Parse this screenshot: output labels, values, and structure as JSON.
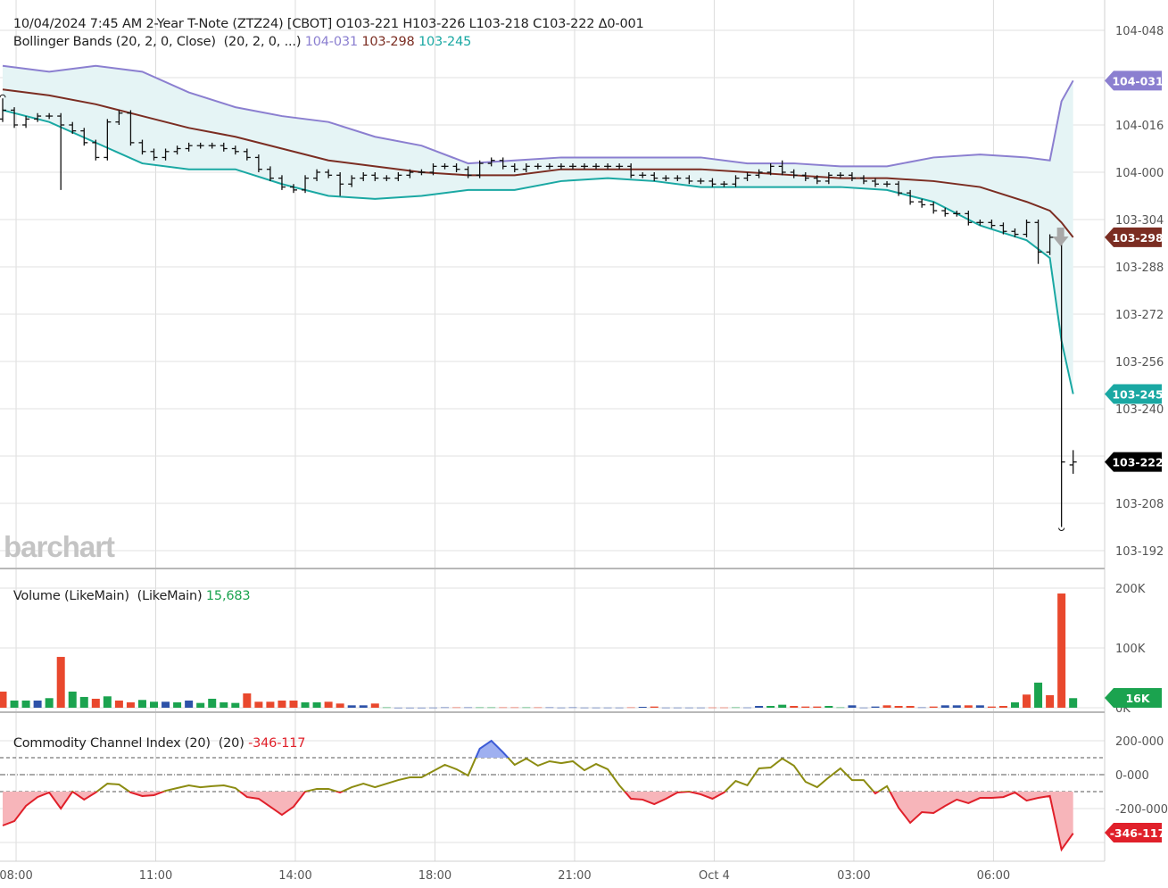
{
  "header": {
    "datetime": "10/04/2024 7:45 AM",
    "instrument": "2-Year T-Note (ZTZ24) [CBOT]",
    "open": "O103-221",
    "high": "H103-226",
    "low": "L103-218",
    "close": "C103-222",
    "change": "Δ0-001"
  },
  "bollinger_legend": {
    "label": "Bollinger Bands (20, 2, 0, Close)  (20, 2, 0, ...)",
    "upper": "104-031",
    "middle": "103-298",
    "lower": "103-245"
  },
  "volume_legend": {
    "label": "Volume (LikeMain)  (LikeMain)",
    "value": "15,683"
  },
  "cci_legend": {
    "label": "Commodity Channel Index (20)  (20)",
    "value": "-346-117"
  },
  "watermark": "barchart",
  "colors": {
    "upper_band": "#8b7fd0",
    "middle_band": "#7b2d22",
    "lower_band": "#1aa8a3",
    "band_fill": "#e5f4f5",
    "volume_up": "#1ba34f",
    "volume_down": "#e9482d",
    "volume_flat": "#2d52a8",
    "cci_line": "#8c8c12",
    "cci_high": "#3c5bd6",
    "cci_low": "#e0202a",
    "last_price": "#000000"
  },
  "chart_data": [
    {
      "type": "ohlc",
      "panel": "price",
      "x_labels": [
        {
          "label": "08:00",
          "bar": 1
        },
        {
          "label": "11:00",
          "bar": 13
        },
        {
          "label": "14:00",
          "bar": 25
        },
        {
          "label": "18:00",
          "bar": 37
        },
        {
          "label": "21:00",
          "bar": 49
        },
        {
          "label": "Oct 4",
          "bar": 61
        },
        {
          "label": "03:00",
          "bar": 73
        },
        {
          "label": "06:00",
          "bar": 85
        }
      ],
      "y_ticks": [
        "104-048",
        "104-016",
        "104-000",
        "103-304",
        "103-288",
        "103-272",
        "103-256",
        "103-240",
        "103-208",
        "103-192"
      ],
      "ylim": [
        "103-186",
        "104-058"
      ],
      "grid": true,
      "bars": [
        [
          "104-018",
          "104-025",
          "104-017",
          "104-021"
        ],
        [
          "104-021",
          "104-022",
          "104-015",
          "104-016"
        ],
        [
          "104-016",
          "104-019",
          "104-015",
          "104-018"
        ],
        [
          "104-018",
          "104-020",
          "104-017",
          "104-019"
        ],
        [
          "104-019",
          "104-020",
          "104-018",
          "104-019"
        ],
        [
          "104-019",
          "104-020",
          "103-314",
          "104-016"
        ],
        [
          "104-016",
          "104-017",
          "104-013",
          "104-014"
        ],
        [
          "104-014",
          "104-015",
          "104-009",
          "104-010"
        ],
        [
          "104-010",
          "104-011",
          "104-004",
          "104-005"
        ],
        [
          "104-005",
          "104-018",
          "104-004",
          "104-017"
        ],
        [
          "104-017",
          "104-021",
          "104-016",
          "104-020"
        ],
        [
          "104-020",
          "104-021",
          "104-009",
          "104-010"
        ],
        [
          "104-010",
          "104-011",
          "104-006",
          "104-007"
        ],
        [
          "104-007",
          "104-008",
          "104-004",
          "104-005"
        ],
        [
          "104-005",
          "104-008",
          "104-004",
          "104-007"
        ],
        [
          "104-007",
          "104-009",
          "104-006",
          "104-008"
        ],
        [
          "104-008",
          "104-010",
          "104-007",
          "104-009"
        ],
        [
          "104-009",
          "104-010",
          "104-008",
          "104-009"
        ],
        [
          "104-009",
          "104-010",
          "104-008",
          "104-009"
        ],
        [
          "104-009",
          "104-010",
          "104-007",
          "104-008"
        ],
        [
          "104-008",
          "104-009",
          "104-006",
          "104-007"
        ],
        [
          "104-007",
          "104-008",
          "104-004",
          "104-005"
        ],
        [
          "104-005",
          "104-006",
          "104-000",
          "104-001"
        ],
        [
          "104-001",
          "104-002",
          "103-317",
          "103-318"
        ],
        [
          "103-318",
          "103-319",
          "103-314",
          "103-315"
        ],
        [
          "103-315",
          "103-316",
          "103-313",
          "103-314"
        ],
        [
          "103-314",
          "103-319",
          "103-313",
          "103-318"
        ],
        [
          "103-318",
          "104-001",
          "103-317",
          "104-000"
        ],
        [
          "104-000",
          "104-001",
          "103-318",
          "103-319"
        ],
        [
          "103-319",
          "104-000",
          "103-312",
          "103-316"
        ],
        [
          "103-316",
          "103-319",
          "103-315",
          "103-318"
        ],
        [
          "103-318",
          "104-000",
          "103-317",
          "103-319"
        ],
        [
          "103-319",
          "104-000",
          "103-317",
          "103-318"
        ],
        [
          "103-318",
          "103-319",
          "103-317",
          "103-318"
        ],
        [
          "103-318",
          "104-000",
          "103-317",
          "103-319"
        ],
        [
          "103-319",
          "104-001",
          "103-318",
          "104-000"
        ],
        [
          "104-000",
          "104-001",
          "103-319",
          "104-000"
        ],
        [
          "104-000",
          "104-003",
          "103-319",
          "104-002"
        ],
        [
          "104-002",
          "104-003",
          "104-001",
          "104-002"
        ],
        [
          "104-002",
          "104-003",
          "104-000",
          "104-001"
        ],
        [
          "104-001",
          "104-002",
          "103-318",
          "103-319"
        ],
        [
          "103-319",
          "104-004",
          "103-318",
          "104-003"
        ],
        [
          "104-003",
          "104-005",
          "104-002",
          "104-004"
        ],
        [
          "104-004",
          "104-005",
          "104-001",
          "104-002"
        ],
        [
          "104-002",
          "104-003",
          "104-000",
          "104-001"
        ],
        [
          "104-001",
          "104-003",
          "104-000",
          "104-002"
        ],
        [
          "104-002",
          "104-003",
          "104-001",
          "104-002"
        ],
        [
          "104-002",
          "104-003",
          "104-001",
          "104-002"
        ],
        [
          "104-002",
          "104-003",
          "104-001",
          "104-002"
        ],
        [
          "104-002",
          "104-003",
          "104-001",
          "104-002"
        ],
        [
          "104-002",
          "104-003",
          "104-001",
          "104-002"
        ],
        [
          "104-002",
          "104-003",
          "104-001",
          "104-002"
        ],
        [
          "104-002",
          "104-003",
          "104-001",
          "104-002"
        ],
        [
          "104-002",
          "104-003",
          "104-001",
          "104-002"
        ],
        [
          "104-002",
          "104-003",
          "103-318",
          "103-319"
        ],
        [
          "103-319",
          "104-000",
          "103-318",
          "103-319"
        ],
        [
          "103-319",
          "104-000",
          "103-317",
          "103-318"
        ],
        [
          "103-318",
          "103-319",
          "103-317",
          "103-318"
        ],
        [
          "103-318",
          "103-319",
          "103-317",
          "103-318"
        ],
        [
          "103-318",
          "103-319",
          "103-316",
          "103-317"
        ],
        [
          "103-317",
          "103-318",
          "103-316",
          "103-317"
        ],
        [
          "103-317",
          "103-318",
          "103-315",
          "103-316"
        ],
        [
          "103-316",
          "103-317",
          "103-315",
          "103-316"
        ],
        [
          "103-316",
          "103-319",
          "103-315",
          "103-318"
        ],
        [
          "103-318",
          "104-000",
          "103-317",
          "103-319"
        ],
        [
          "103-319",
          "104-001",
          "103-318",
          "104-000"
        ],
        [
          "104-000",
          "104-003",
          "103-319",
          "104-002"
        ],
        [
          "104-002",
          "104-004",
          "103-319",
          "104-000"
        ],
        [
          "104-000",
          "104-001",
          "103-318",
          "103-319"
        ],
        [
          "103-319",
          "104-000",
          "103-317",
          "103-318"
        ],
        [
          "103-318",
          "103-319",
          "103-316",
          "103-317"
        ],
        [
          "103-317",
          "104-000",
          "103-316",
          "103-319"
        ],
        [
          "103-319",
          "104-000",
          "103-318",
          "103-319"
        ],
        [
          "103-319",
          "104-000",
          "103-317",
          "103-318"
        ],
        [
          "103-318",
          "103-319",
          "103-316",
          "103-317"
        ],
        [
          "103-317",
          "103-318",
          "103-315",
          "103-316"
        ],
        [
          "103-316",
          "103-317",
          "103-315",
          "103-316"
        ],
        [
          "103-316",
          "103-317",
          "103-312",
          "103-313"
        ],
        [
          "103-313",
          "103-314",
          "103-309",
          "103-310"
        ],
        [
          "103-310",
          "103-311",
          "103-308",
          "103-309"
        ],
        [
          "103-309",
          "103-310",
          "103-306",
          "103-307"
        ],
        [
          "103-307",
          "103-308",
          "103-305",
          "103-306"
        ],
        [
          "103-306",
          "103-307",
          "103-305",
          "103-306"
        ],
        [
          "103-306",
          "103-307",
          "103-302",
          "103-303"
        ],
        [
          "103-303",
          "103-304",
          "103-302",
          "103-303"
        ],
        [
          "103-303",
          "103-304",
          "103-301",
          "103-302"
        ],
        [
          "103-302",
          "103-303",
          "103-299",
          "103-300"
        ],
        [
          "103-300",
          "103-301",
          "103-298",
          "103-299"
        ],
        [
          "103-299",
          "103-304",
          "103-298",
          "103-303"
        ],
        [
          "103-303",
          "103-304",
          "103-289",
          "103-293"
        ],
        [
          "103-293",
          "103-299",
          "103-292",
          "103-298"
        ],
        [
          "103-298",
          "103-299",
          "103-200",
          "103-222"
        ],
        [
          "103-221",
          "103-226",
          "103-218",
          "103-222"
        ]
      ],
      "bollinger": {
        "bars": [
          0,
          4,
          8,
          12,
          16,
          20,
          24,
          28,
          32,
          36,
          40,
          44,
          48,
          52,
          56,
          60,
          64,
          68,
          72,
          76,
          80,
          84,
          88,
          90,
          91,
          92
        ],
        "upper": [
          "104-036",
          "104-034",
          "104-036",
          "104-034",
          "104-027",
          "104-022",
          "104-019",
          "104-017",
          "104-012",
          "104-009",
          "104-003",
          "104-004",
          "104-005",
          "104-005",
          "104-005",
          "104-005",
          "104-003",
          "104-003",
          "104-002",
          "104-002",
          "104-005",
          "104-006",
          "104-005",
          "104-004",
          "104-024",
          "104-031"
        ],
        "middle": [
          "104-028",
          "104-026",
          "104-023",
          "104-019",
          "104-015",
          "104-012",
          "104-008",
          "104-004",
          "104-002",
          "104-000",
          "103-319",
          "103-319",
          "104-001",
          "104-001",
          "104-001",
          "104-001",
          "104-000",
          "103-319",
          "103-318",
          "103-318",
          "103-317",
          "103-315",
          "103-310",
          "103-307",
          "103-303",
          "103-298"
        ],
        "lower": [
          "104-021",
          "104-017",
          "104-010",
          "104-003",
          "104-001",
          "104-001",
          "103-316",
          "103-312",
          "103-311",
          "103-312",
          "103-314",
          "103-314",
          "103-317",
          "103-318",
          "103-317",
          "103-315",
          "103-315",
          "103-315",
          "103-315",
          "103-314",
          "103-310",
          "103-302",
          "103-297",
          "103-291",
          "103-263",
          "103-245"
        ]
      },
      "price_tags": [
        {
          "label": "104-031",
          "series": "upper_band"
        },
        {
          "label": "103-298",
          "series": "middle_band"
        },
        {
          "label": "103-245",
          "series": "lower_band"
        },
        {
          "label": "103-222",
          "series": "last_price"
        }
      ]
    },
    {
      "type": "bar",
      "panel": "volume",
      "unit": "K",
      "y_ticks": [
        "200K",
        "100K",
        "0K"
      ],
      "ylim": [
        0,
        228
      ],
      "values": [
        27,
        12,
        12,
        12,
        16,
        85,
        27,
        18,
        15,
        19,
        12,
        9,
        13,
        10,
        10,
        9,
        12,
        8,
        15,
        9,
        8,
        24,
        10,
        10,
        12,
        12,
        9,
        9,
        10,
        7,
        4,
        4,
        7,
        1,
        0.3,
        0.3,
        0.3,
        0.5,
        1,
        1,
        1,
        1,
        1,
        1,
        1,
        1,
        1,
        1,
        0.5,
        1,
        0.5,
        0.5,
        0.5,
        0.5,
        1,
        1.5,
        2,
        0.5,
        0.5,
        0.5,
        0.5,
        0.7,
        0.7,
        1,
        0.7,
        3,
        3,
        5,
        3,
        2,
        2,
        3,
        1,
        4,
        0.5,
        2,
        4,
        3,
        3,
        1,
        2,
        4,
        4,
        4,
        4,
        2,
        3,
        9,
        22,
        42,
        21,
        191,
        16
      ],
      "directions": [
        "d",
        "u",
        "u",
        "f",
        "u",
        "d",
        "u",
        "u",
        "d",
        "u",
        "d",
        "d",
        "u",
        "u",
        "f",
        "u",
        "f",
        "u",
        "u",
        "u",
        "u",
        "d",
        "d",
        "d",
        "d",
        "d",
        "u",
        "u",
        "d",
        "d",
        "f",
        "f",
        "d",
        "u",
        "f",
        "f",
        "f",
        "f",
        "f",
        "d",
        "f",
        "u",
        "u",
        "d",
        "d",
        "u",
        "d",
        "f",
        "f",
        "f",
        "f",
        "f",
        "f",
        "f",
        "d",
        "f",
        "d",
        "f",
        "f",
        "f",
        "f",
        "d",
        "d",
        "u",
        "f",
        "f",
        "u",
        "u",
        "d",
        "d",
        "d",
        "u",
        "u",
        "f",
        "f",
        "f",
        "d",
        "d",
        "d",
        "f",
        "d",
        "f",
        "f",
        "d",
        "f",
        "d",
        "d",
        "u",
        "d",
        "u",
        "d",
        "d",
        "u"
      ],
      "last_tag": "16K"
    },
    {
      "type": "line",
      "panel": "cci",
      "y_ticks": [
        "200-000",
        "0-000",
        "-200-000"
      ],
      "ylim": [
        -511,
        358
      ],
      "levels": [
        100,
        0,
        -100
      ],
      "values": [
        -300,
        -274,
        -184,
        -132,
        -105,
        -200,
        -100,
        -147,
        -105,
        -53,
        -58,
        -105,
        -126,
        -121,
        -95,
        -79,
        -63,
        -74,
        -68,
        -63,
        -79,
        -132,
        -142,
        -189,
        -237,
        -189,
        -100,
        -84,
        -84,
        -105,
        -74,
        -53,
        -74,
        -53,
        -32,
        -16,
        -16,
        21,
        58,
        32,
        -5,
        153,
        200,
        132,
        58,
        95,
        53,
        79,
        68,
        79,
        26,
        63,
        32,
        -63,
        -142,
        -147,
        -174,
        -142,
        -105,
        -100,
        -116,
        -142,
        -105,
        -37,
        -63,
        37,
        42,
        95,
        53,
        -42,
        -74,
        -16,
        37,
        -32,
        -32,
        -111,
        -68,
        -195,
        -284,
        -221,
        -226,
        -184,
        -147,
        -168,
        -137,
        -137,
        -132,
        -105,
        -153,
        -137,
        -126,
        -442,
        -346.117
      ],
      "last_tag": "-346-117"
    }
  ]
}
